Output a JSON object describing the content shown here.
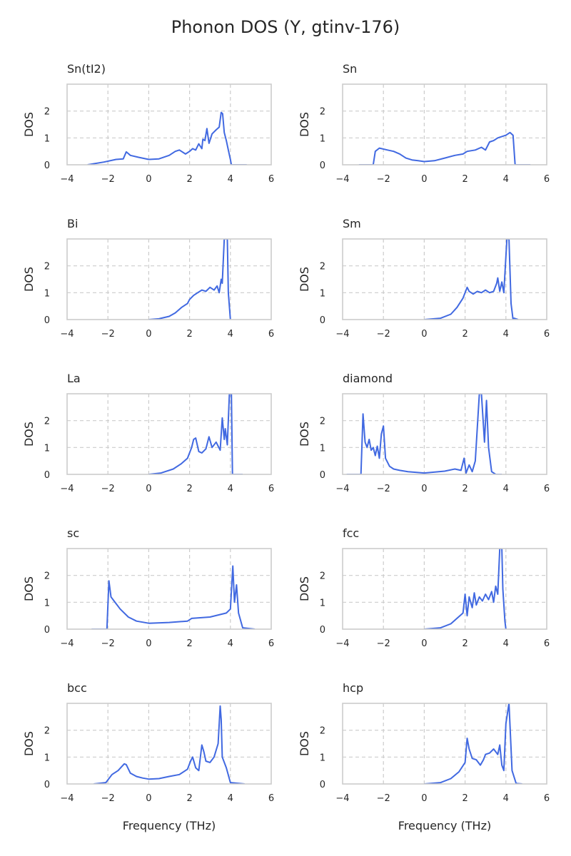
{
  "figure": {
    "title": "Phonon DOS (Y, gtinv-176)"
  },
  "colors": {
    "line": "#4169e1",
    "grid": "#cccccc",
    "spine": "#cccccc",
    "text": "#262626"
  },
  "chart_data": [
    {
      "type": "line",
      "title": "Sn(tI2)",
      "xlabel": "",
      "ylabel": "DOS",
      "xlim": [
        -4,
        6
      ],
      "ylim": [
        0,
        3
      ],
      "xticks": [
        "−4",
        "−2",
        "0",
        "2",
        "4",
        "6"
      ],
      "yticks": [
        "0",
        "1",
        "2"
      ],
      "grid": "dashed",
      "x": [
        -3.0,
        -2.2,
        -1.6,
        -1.25,
        -1.1,
        -0.9,
        -0.5,
        0.0,
        0.5,
        1.0,
        1.3,
        1.5,
        1.8,
        2.0,
        2.15,
        2.3,
        2.45,
        2.6,
        2.65,
        2.75,
        2.85,
        2.95,
        3.1,
        3.3,
        3.45,
        3.55,
        3.62,
        3.7,
        3.8,
        3.9,
        4.0,
        4.05,
        4.8
      ],
      "values": [
        0.0,
        0.1,
        0.2,
        0.22,
        0.48,
        0.35,
        0.28,
        0.2,
        0.22,
        0.35,
        0.5,
        0.55,
        0.4,
        0.5,
        0.6,
        0.55,
        0.78,
        0.6,
        0.95,
        0.9,
        1.35,
        0.8,
        1.15,
        1.3,
        1.4,
        1.95,
        1.9,
        1.2,
        0.9,
        0.55,
        0.2,
        0.0,
        0.0
      ]
    },
    {
      "type": "line",
      "title": "Sn",
      "xlabel": "",
      "ylabel": "DOS",
      "xlim": [
        -4,
        6
      ],
      "ylim": [
        0,
        3
      ],
      "xticks": [
        "−4",
        "−2",
        "0",
        "2",
        "4",
        "6"
      ],
      "yticks": [
        "0",
        "1",
        "2"
      ],
      "grid": "dashed",
      "x": [
        -3.2,
        -2.5,
        -2.4,
        -2.2,
        -1.8,
        -1.5,
        -1.2,
        -0.9,
        -0.6,
        -0.3,
        0.0,
        0.5,
        1.0,
        1.5,
        1.9,
        2.1,
        2.5,
        2.8,
        3.0,
        3.2,
        3.4,
        3.6,
        3.8,
        4.0,
        4.2,
        4.35,
        4.45,
        5.2
      ],
      "values": [
        0.0,
        0.0,
        0.5,
        0.62,
        0.55,
        0.5,
        0.4,
        0.25,
        0.18,
        0.15,
        0.12,
        0.15,
        0.25,
        0.35,
        0.4,
        0.5,
        0.55,
        0.65,
        0.55,
        0.85,
        0.9,
        1.0,
        1.05,
        1.1,
        1.2,
        1.1,
        0.0,
        0.0
      ]
    },
    {
      "type": "line",
      "title": "Bi",
      "xlabel": "",
      "ylabel": "DOS",
      "xlim": [
        -4,
        6
      ],
      "ylim": [
        0,
        3
      ],
      "xticks": [
        "−4",
        "−2",
        "0",
        "2",
        "4",
        "6"
      ],
      "yticks": [
        "0",
        "1",
        "2"
      ],
      "grid": "dashed",
      "x": [
        0.0,
        0.5,
        1.0,
        1.3,
        1.6,
        1.9,
        2.0,
        2.2,
        2.4,
        2.6,
        2.8,
        3.0,
        3.2,
        3.35,
        3.45,
        3.55,
        3.6,
        3.7,
        3.75,
        3.85,
        3.9,
        4.0
      ],
      "values": [
        0.0,
        0.03,
        0.12,
        0.25,
        0.45,
        0.6,
        0.75,
        0.9,
        1.0,
        1.1,
        1.05,
        1.2,
        1.1,
        1.25,
        1.0,
        1.5,
        1.35,
        3.0,
        3.0,
        3.0,
        1.0,
        0.0
      ]
    },
    {
      "type": "line",
      "title": "Sm",
      "xlabel": "",
      "ylabel": "DOS",
      "xlim": [
        -4,
        6
      ],
      "ylim": [
        0,
        3
      ],
      "xticks": [
        "−4",
        "−2",
        "0",
        "2",
        "4",
        "6"
      ],
      "yticks": [
        "0",
        "1",
        "2"
      ],
      "grid": "dashed",
      "x": [
        0.0,
        0.8,
        1.3,
        1.6,
        1.9,
        2.1,
        2.2,
        2.4,
        2.6,
        2.8,
        3.0,
        3.2,
        3.4,
        3.55,
        3.6,
        3.7,
        3.8,
        3.9,
        4.05,
        4.15,
        4.25,
        4.35,
        4.4,
        4.6
      ],
      "values": [
        0.0,
        0.05,
        0.2,
        0.45,
        0.8,
        1.2,
        1.05,
        0.95,
        1.05,
        1.0,
        1.1,
        1.0,
        1.05,
        1.35,
        1.55,
        1.05,
        1.4,
        1.0,
        3.0,
        3.0,
        0.6,
        0.0,
        0.05,
        0.0
      ]
    },
    {
      "type": "line",
      "title": "La",
      "xlabel": "",
      "ylabel": "DOS",
      "xlim": [
        -4,
        6
      ],
      "ylim": [
        0,
        3
      ],
      "xticks": [
        "−4",
        "−2",
        "0",
        "2",
        "4",
        "6"
      ],
      "yticks": [
        "0",
        "1",
        "2"
      ],
      "grid": "dashed",
      "x": [
        0.0,
        0.6,
        1.2,
        1.6,
        1.9,
        2.1,
        2.2,
        2.3,
        2.45,
        2.6,
        2.8,
        2.95,
        3.1,
        3.3,
        3.5,
        3.6,
        3.7,
        3.75,
        3.85,
        3.95,
        4.05,
        4.1,
        4.15,
        4.6
      ],
      "values": [
        0.0,
        0.05,
        0.2,
        0.4,
        0.6,
        1.0,
        1.3,
        1.35,
        0.85,
        0.8,
        0.95,
        1.4,
        1.0,
        1.2,
        0.9,
        2.1,
        1.3,
        1.7,
        1.1,
        3.0,
        3.0,
        0.0,
        0.0,
        0.0
      ]
    },
    {
      "type": "line",
      "title": "diamond",
      "xlabel": "",
      "ylabel": "DOS",
      "xlim": [
        -4,
        6
      ],
      "ylim": [
        0,
        3
      ],
      "xticks": [
        "−4",
        "−2",
        "0",
        "2",
        "4",
        "6"
      ],
      "yticks": [
        "0",
        "1",
        "2"
      ],
      "grid": "dashed",
      "x": [
        -3.8,
        -3.1,
        -3.0,
        -2.9,
        -2.8,
        -2.7,
        -2.6,
        -2.5,
        -2.4,
        -2.3,
        -2.2,
        -2.1,
        -2.0,
        -1.9,
        -1.7,
        -1.5,
        -1.2,
        -0.8,
        0.0,
        1.0,
        1.5,
        1.8,
        1.95,
        2.05,
        2.2,
        2.35,
        2.5,
        2.7,
        2.8,
        2.95,
        3.05,
        3.15,
        3.3,
        3.5,
        3.8
      ],
      "values": [
        0.0,
        0.0,
        2.25,
        1.2,
        1.0,
        1.3,
        0.9,
        1.0,
        0.7,
        1.05,
        0.6,
        1.5,
        1.8,
        0.6,
        0.3,
        0.2,
        0.15,
        0.1,
        0.05,
        0.12,
        0.2,
        0.15,
        0.6,
        0.05,
        0.35,
        0.1,
        0.5,
        3.0,
        3.0,
        1.2,
        2.75,
        1.0,
        0.1,
        0.0,
        0.0
      ]
    },
    {
      "type": "line",
      "title": "sc",
      "xlabel": "",
      "ylabel": "DOS",
      "xlim": [
        -4,
        6
      ],
      "ylim": [
        0,
        3
      ],
      "xticks": [
        "−4",
        "−2",
        "0",
        "2",
        "4",
        "6"
      ],
      "yticks": [
        "0",
        "1",
        "2"
      ],
      "grid": "dashed",
      "x": [
        -2.8,
        -2.05,
        -1.95,
        -1.85,
        -1.7,
        -1.4,
        -1.0,
        -0.6,
        0.0,
        1.0,
        1.9,
        2.1,
        3.0,
        3.8,
        4.0,
        4.12,
        4.2,
        4.3,
        4.4,
        4.6,
        5.2
      ],
      "values": [
        0.0,
        0.0,
        1.8,
        1.2,
        1.05,
        0.75,
        0.45,
        0.3,
        0.22,
        0.25,
        0.3,
        0.4,
        0.45,
        0.6,
        0.75,
        2.35,
        1.0,
        1.65,
        0.6,
        0.05,
        0.0
      ]
    },
    {
      "type": "line",
      "title": "fcc",
      "xlabel": "",
      "ylabel": "DOS",
      "xlim": [
        -4,
        6
      ],
      "ylim": [
        0,
        3
      ],
      "xticks": [
        "−4",
        "−2",
        "0",
        "2",
        "4",
        "6"
      ],
      "yticks": [
        "0",
        "1",
        "2"
      ],
      "grid": "dashed",
      "x": [
        0.0,
        0.8,
        1.3,
        1.6,
        1.9,
        2.0,
        2.1,
        2.2,
        2.35,
        2.45,
        2.55,
        2.7,
        2.85,
        3.0,
        3.15,
        3.3,
        3.4,
        3.5,
        3.6,
        3.7,
        3.75,
        3.8,
        3.85,
        3.95,
        4.0
      ],
      "values": [
        0.0,
        0.05,
        0.2,
        0.4,
        0.6,
        1.3,
        0.5,
        1.2,
        0.8,
        1.35,
        0.9,
        1.2,
        1.05,
        1.3,
        1.1,
        1.4,
        1.0,
        1.6,
        1.3,
        3.0,
        3.0,
        3.0,
        1.5,
        0.3,
        0.0
      ]
    },
    {
      "type": "line",
      "title": "bcc",
      "xlabel": "",
      "ylabel": "DOS",
      "xlim": [
        -4,
        6
      ],
      "ylim": [
        0,
        3
      ],
      "xticks": [
        "−4",
        "−2",
        "0",
        "2",
        "4",
        "6"
      ],
      "yticks": [
        "0",
        "1",
        "2"
      ],
      "grid": "dashed",
      "x": [
        -2.7,
        -2.1,
        -1.8,
        -1.5,
        -1.2,
        -1.1,
        -0.9,
        -0.6,
        -0.3,
        0.0,
        0.5,
        1.0,
        1.5,
        1.9,
        2.05,
        2.15,
        2.3,
        2.45,
        2.6,
        2.7,
        2.8,
        3.0,
        3.2,
        3.4,
        3.5,
        3.55,
        3.6,
        3.8,
        4.0,
        4.7
      ],
      "values": [
        0.0,
        0.05,
        0.35,
        0.5,
        0.75,
        0.72,
        0.4,
        0.28,
        0.22,
        0.18,
        0.2,
        0.28,
        0.35,
        0.55,
        0.85,
        1.0,
        0.6,
        0.5,
        1.45,
        1.2,
        0.85,
        0.8,
        1.0,
        1.5,
        2.9,
        2.4,
        1.0,
        0.6,
        0.05,
        0.0
      ]
    },
    {
      "type": "line",
      "title": "hcp",
      "xlabel": "",
      "ylabel": "DOS",
      "xlim": [
        -4,
        6
      ],
      "ylim": [
        0,
        3
      ],
      "xticks": [
        "−4",
        "−2",
        "0",
        "2",
        "4",
        "6"
      ],
      "yticks": [
        "0",
        "1",
        "2"
      ],
      "grid": "dashed",
      "x": [
        0.0,
        0.8,
        1.3,
        1.7,
        2.0,
        2.1,
        2.2,
        2.35,
        2.55,
        2.75,
        2.9,
        3.0,
        3.2,
        3.4,
        3.6,
        3.7,
        3.8,
        3.9,
        4.0,
        4.15,
        4.2,
        4.3,
        4.5,
        4.8
      ],
      "values": [
        0.0,
        0.05,
        0.2,
        0.45,
        0.8,
        1.7,
        1.3,
        0.95,
        0.9,
        0.7,
        0.9,
        1.1,
        1.15,
        1.3,
        1.1,
        1.45,
        0.7,
        0.5,
        2.25,
        3.0,
        2.2,
        0.5,
        0.02,
        0.0
      ]
    }
  ],
  "xlabel_bottom": "Frequency (THz)"
}
